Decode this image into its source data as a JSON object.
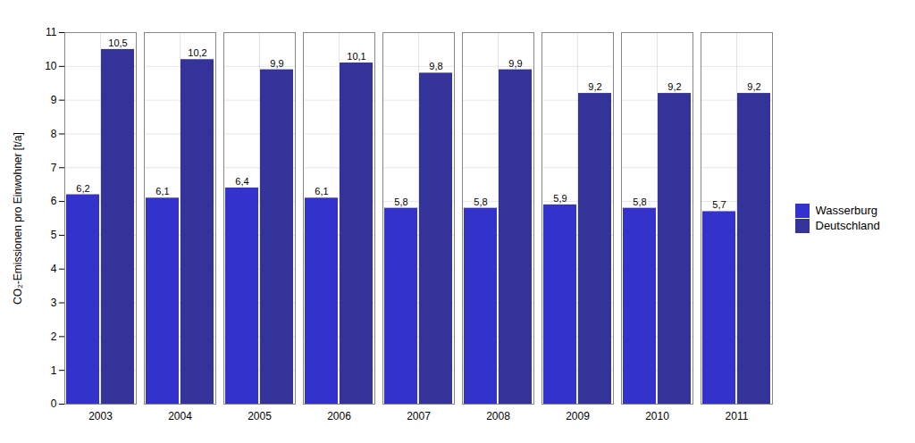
{
  "chart_data": {
    "type": "bar",
    "ylabel": "CO₂-Emissionen pro Einwohner [t/a]",
    "categories": [
      "2003",
      "2004",
      "2005",
      "2006",
      "2007",
      "2008",
      "2009",
      "2010",
      "2011"
    ],
    "series": [
      {
        "name": "Wasserburg",
        "color": "#3333CC",
        "values": [
          6.2,
          6.1,
          6.4,
          6.1,
          5.8,
          5.8,
          5.9,
          5.8,
          5.7
        ],
        "value_labels": [
          "6,2",
          "6,1",
          "6,4",
          "6,1",
          "5,8",
          "5,8",
          "5,9",
          "5,8",
          "5,7"
        ]
      },
      {
        "name": "Deutschland",
        "color": "#333399",
        "values": [
          10.5,
          10.2,
          9.9,
          10.1,
          9.8,
          9.9,
          9.2,
          9.2,
          9.2
        ],
        "value_labels": [
          "10,5",
          "10,2",
          "9,9",
          "10,1",
          "9,8",
          "9,9",
          "9,2",
          "9,2",
          "9,2"
        ]
      }
    ],
    "ylim": [
      0,
      11
    ],
    "yticks": [
      0,
      1,
      2,
      3,
      4,
      5,
      6,
      7,
      8,
      9,
      10,
      11
    ],
    "grid": true,
    "legend": "right",
    "data_labels": true
  }
}
